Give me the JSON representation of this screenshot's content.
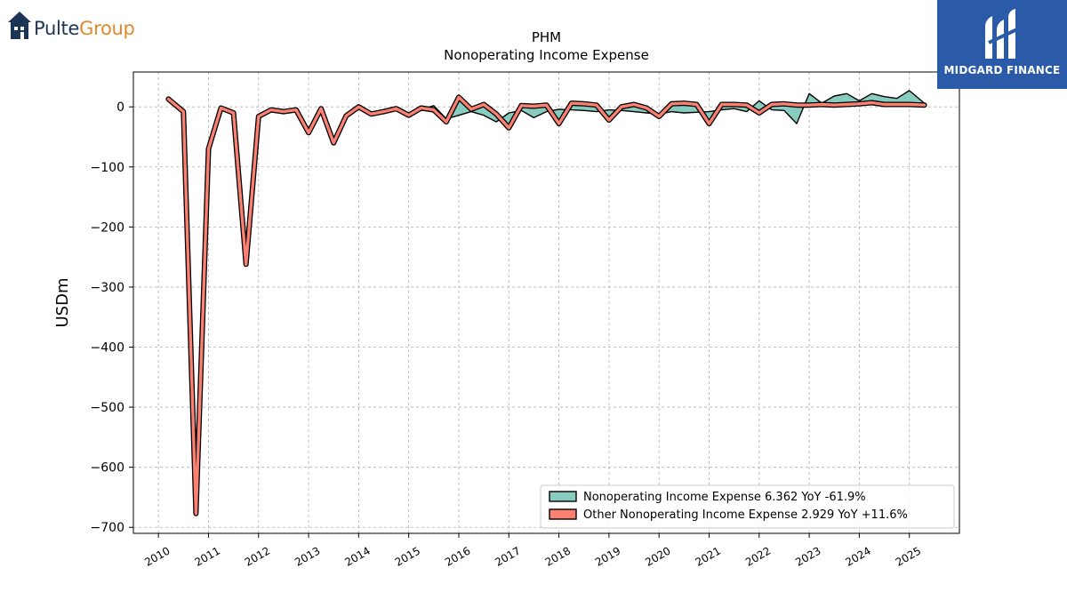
{
  "branding": {
    "left_logo_part1": "Pulte",
    "left_logo_part2": "Group",
    "right_logo": "MIDGARD FINANCE"
  },
  "chart_data": {
    "type": "area",
    "title": "PHM",
    "subtitle": "Nonoperating Income Expense",
    "ylabel": "USDm",
    "xlabel": "",
    "ylim": [
      -710,
      58
    ],
    "xlim": [
      2009.5,
      2026.0
    ],
    "yticks": [
      0,
      -100,
      -200,
      -300,
      -400,
      -500,
      -600,
      -700
    ],
    "ytick_labels": [
      "0",
      "−100",
      "−200",
      "−300",
      "−400",
      "−500",
      "−600",
      "−700"
    ],
    "xticks": [
      2010,
      2011,
      2012,
      2013,
      2014,
      2015,
      2016,
      2017,
      2018,
      2019,
      2020,
      2021,
      2022,
      2023,
      2024,
      2025
    ],
    "xtick_labels": [
      "2010",
      "2011",
      "2012",
      "2013",
      "2014",
      "2015",
      "2016",
      "2017",
      "2018",
      "2019",
      "2020",
      "2021",
      "2022",
      "2023",
      "2024",
      "2025"
    ],
    "grid": true,
    "legend_position": "bottom-right",
    "x": [
      2010.2,
      2010.5,
      2010.75,
      2011.0,
      2011.25,
      2011.5,
      2011.75,
      2012.0,
      2012.25,
      2012.5,
      2012.75,
      2013.0,
      2013.25,
      2013.5,
      2013.75,
      2014.0,
      2014.25,
      2014.5,
      2014.75,
      2015.0,
      2015.25,
      2015.5,
      2015.75,
      2016.0,
      2016.25,
      2016.5,
      2016.75,
      2017.0,
      2017.25,
      2017.5,
      2017.75,
      2018.0,
      2018.25,
      2018.5,
      2018.75,
      2019.0,
      2019.25,
      2019.5,
      2019.75,
      2020.0,
      2020.25,
      2020.5,
      2020.75,
      2021.0,
      2021.25,
      2021.5,
      2021.75,
      2022.0,
      2022.25,
      2022.5,
      2022.75,
      2023.0,
      2023.25,
      2023.5,
      2023.75,
      2024.0,
      2024.25,
      2024.5,
      2024.75,
      2025.0,
      2025.3
    ],
    "series": [
      {
        "name": "Nonoperating Income Expense",
        "legend_label": "Nonoperating Income Expense  6.362 YoY -61.9%",
        "color": "#88cbbf",
        "values": [
          13,
          -8,
          -677,
          -70,
          -2,
          -10,
          -262,
          -16,
          -5,
          -8,
          -5,
          -43,
          -3,
          -60,
          -15,
          0,
          -12,
          -8,
          -3,
          -14,
          -5,
          2,
          -20,
          -14,
          -8,
          -14,
          -25,
          -10,
          -6,
          -18,
          -8,
          -4,
          -5,
          -6,
          -8,
          -5,
          -6,
          -8,
          -10,
          -12,
          -8,
          -10,
          -9,
          -8,
          -5,
          -3,
          -8,
          10,
          -5,
          -6,
          -28,
          22,
          6,
          18,
          22,
          10,
          22,
          17,
          14,
          27,
          6
        ]
      },
      {
        "name": "Other Nonoperating Income Expense",
        "legend_label": "Other Nonoperating Income Expense  2.929 YoY +11.6%",
        "color": "#fa8072",
        "values": [
          13,
          -8,
          -677,
          -70,
          -2,
          -10,
          -262,
          -16,
          -5,
          -8,
          -5,
          -43,
          -3,
          -60,
          -15,
          0,
          -12,
          -8,
          -3,
          -14,
          -2,
          -5,
          -25,
          16,
          -4,
          4,
          -12,
          -35,
          2,
          1,
          3,
          -28,
          6,
          5,
          3,
          -22,
          0,
          4,
          -2,
          -16,
          5,
          6,
          4,
          -28,
          4,
          4,
          3,
          -10,
          4,
          5,
          3,
          3,
          4,
          3,
          4,
          5,
          7,
          4,
          4,
          4,
          3
        ]
      }
    ]
  }
}
